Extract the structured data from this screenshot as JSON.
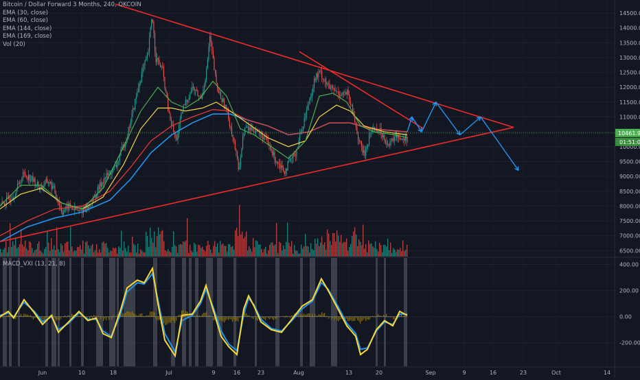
{
  "chart_data": [
    {
      "type": "line",
      "title": "Bitcoin / Dollar Forward 3 Months, 240, OKCOIN",
      "legend": [
        "EMA (30, close)",
        "EMA (60, close)",
        "EMA (144, close)",
        "EMA (169, close)",
        "Vol (20)"
      ],
      "y_ticks": [
        "14500.00",
        "14000.00",
        "13500.00",
        "13000.00",
        "12500.00",
        "12000.00",
        "11500.00",
        "11000.00",
        "10500.00",
        "10000.00",
        "9500.00",
        "9000.00",
        "8500.00",
        "8000.00",
        "7500.00",
        "7000.00",
        "6500.00"
      ],
      "x_ticks": [
        "Jun",
        "10",
        "18",
        "Jul",
        "9",
        "16",
        "23",
        "Aug",
        "13",
        "20",
        "Sep",
        "9",
        "16",
        "23",
        "Oct",
        "14"
      ],
      "ylim": [
        6300,
        14800
      ],
      "price_tag": "10461.99",
      "countdown_tag": "01:51:04",
      "price_path": [
        [
          0,
          8000
        ],
        [
          20,
          8400
        ],
        [
          34,
          9100
        ],
        [
          46,
          8900
        ],
        [
          58,
          8600
        ],
        [
          70,
          8850
        ],
        [
          78,
          8550
        ],
        [
          90,
          7800
        ],
        [
          100,
          8000
        ],
        [
          115,
          7800
        ],
        [
          130,
          8000
        ],
        [
          150,
          8900
        ],
        [
          168,
          9300
        ],
        [
          185,
          10400
        ],
        [
          205,
          12400
        ],
        [
          215,
          13100
        ],
        [
          221,
          14500
        ],
        [
          226,
          13000
        ],
        [
          236,
          12600
        ],
        [
          246,
          11000
        ],
        [
          256,
          10200
        ],
        [
          266,
          11300
        ],
        [
          280,
          12000
        ],
        [
          292,
          11600
        ],
        [
          300,
          12500
        ],
        [
          305,
          13700
        ],
        [
          315,
          12000
        ],
        [
          330,
          11200
        ],
        [
          340,
          10200
        ],
        [
          347,
          9200
        ],
        [
          355,
          10600
        ],
        [
          370,
          10600
        ],
        [
          385,
          10300
        ],
        [
          400,
          9600
        ],
        [
          414,
          9200
        ],
        [
          430,
          9800
        ],
        [
          448,
          11400
        ],
        [
          458,
          12300
        ],
        [
          466,
          12500
        ],
        [
          478,
          12000
        ],
        [
          492,
          11800
        ],
        [
          505,
          11800
        ],
        [
          515,
          11000
        ],
        [
          522,
          10200
        ],
        [
          530,
          9700
        ],
        [
          540,
          10600
        ],
        [
          550,
          10600
        ],
        [
          560,
          10300
        ],
        [
          566,
          10000
        ],
        [
          575,
          10400
        ],
        [
          585,
          10300
        ],
        [
          593,
          10300
        ]
      ],
      "ema30_path": [
        [
          0,
          8000
        ],
        [
          30,
          8700
        ],
        [
          60,
          8700
        ],
        [
          90,
          8100
        ],
        [
          120,
          7900
        ],
        [
          150,
          8600
        ],
        [
          180,
          10000
        ],
        [
          205,
          11200
        ],
        [
          230,
          12000
        ],
        [
          250,
          11500
        ],
        [
          270,
          11300
        ],
        [
          290,
          11600
        ],
        [
          310,
          12200
        ],
        [
          330,
          11700
        ],
        [
          350,
          10600
        ],
        [
          370,
          10400
        ],
        [
          395,
          10000
        ],
        [
          420,
          9600
        ],
        [
          445,
          10200
        ],
        [
          465,
          11700
        ],
        [
          485,
          11800
        ],
        [
          505,
          11500
        ],
        [
          525,
          10700
        ],
        [
          545,
          10500
        ],
        [
          575,
          10400
        ],
        [
          593,
          10300
        ]
      ],
      "ema60_path": [
        [
          0,
          7900
        ],
        [
          30,
          8400
        ],
        [
          60,
          8600
        ],
        [
          90,
          8100
        ],
        [
          120,
          7900
        ],
        [
          150,
          8300
        ],
        [
          180,
          9400
        ],
        [
          205,
          10600
        ],
        [
          230,
          11300
        ],
        [
          250,
          11300
        ],
        [
          270,
          11200
        ],
        [
          295,
          11300
        ],
        [
          315,
          11500
        ],
        [
          335,
          11200
        ],
        [
          360,
          10800
        ],
        [
          390,
          10300
        ],
        [
          420,
          10000
        ],
        [
          445,
          10200
        ],
        [
          465,
          11000
        ],
        [
          490,
          11400
        ],
        [
          510,
          11200
        ],
        [
          530,
          10700
        ],
        [
          560,
          10500
        ],
        [
          593,
          10400
        ]
      ],
      "ema144_path": [
        [
          0,
          7000
        ],
        [
          40,
          7500
        ],
        [
          80,
          7900
        ],
        [
          120,
          8000
        ],
        [
          160,
          8500
        ],
        [
          190,
          9300
        ],
        [
          220,
          10200
        ],
        [
          250,
          10700
        ],
        [
          280,
          11000
        ],
        [
          310,
          11250
        ],
        [
          335,
          11200
        ],
        [
          360,
          10900
        ],
        [
          390,
          10700
        ],
        [
          420,
          10400
        ],
        [
          450,
          10500
        ],
        [
          480,
          10800
        ],
        [
          510,
          10800
        ],
        [
          540,
          10600
        ],
        [
          593,
          10500
        ]
      ],
      "ema169_path": [
        [
          0,
          6800
        ],
        [
          40,
          7300
        ],
        [
          80,
          7600
        ],
        [
          120,
          7800
        ],
        [
          160,
          8200
        ],
        [
          190,
          8900
        ],
        [
          220,
          9800
        ],
        [
          250,
          10400
        ],
        [
          280,
          10800
        ],
        [
          310,
          11100
        ],
        [
          335,
          11100
        ],
        [
          360,
          10900
        ],
        [
          390,
          10700
        ],
        [
          420,
          10400
        ],
        [
          450,
          10500
        ],
        [
          480,
          10800
        ],
        [
          510,
          10800
        ],
        [
          540,
          10600
        ],
        [
          593,
          10500
        ]
      ],
      "upper_trendline": [
        [
          168,
          14800
        ],
        [
          748,
          10650
        ]
      ],
      "lower_trendline": [
        [
          0,
          6800
        ],
        [
          748,
          10650
        ]
      ],
      "projection": [
        [
          593,
          10500
        ],
        [
          600,
          11000
        ],
        [
          614,
          10500
        ],
        [
          635,
          11500
        ],
        [
          670,
          10400
        ],
        [
          700,
          11000
        ],
        [
          755,
          9200
        ]
      ]
    },
    {
      "type": "line",
      "title": "MACD_VXI (13, 21, 8)",
      "y_ticks": [
        "400.00",
        "200.00",
        "0.00",
        "-200.00"
      ],
      "ylim": [
        -380,
        450
      ],
      "macd_path": [
        [
          0,
          0
        ],
        [
          12,
          40
        ],
        [
          20,
          -10
        ],
        [
          35,
          130
        ],
        [
          50,
          30
        ],
        [
          62,
          -60
        ],
        [
          75,
          10
        ],
        [
          85,
          -120
        ],
        [
          100,
          -40
        ],
        [
          115,
          40
        ],
        [
          128,
          -30
        ],
        [
          140,
          -10
        ],
        [
          150,
          -130
        ],
        [
          162,
          -160
        ],
        [
          175,
          40
        ],
        [
          185,
          220
        ],
        [
          200,
          280
        ],
        [
          210,
          260
        ],
        [
          222,
          370
        ],
        [
          230,
          100
        ],
        [
          240,
          -180
        ],
        [
          255,
          -300
        ],
        [
          265,
          10
        ],
        [
          280,
          20
        ],
        [
          292,
          120
        ],
        [
          300,
          240
        ],
        [
          310,
          60
        ],
        [
          322,
          -150
        ],
        [
          333,
          -230
        ],
        [
          345,
          -290
        ],
        [
          355,
          60
        ],
        [
          362,
          160
        ],
        [
          370,
          80
        ],
        [
          380,
          -40
        ],
        [
          395,
          -100
        ],
        [
          410,
          -120
        ],
        [
          425,
          -20
        ],
        [
          440,
          80
        ],
        [
          455,
          130
        ],
        [
          468,
          290
        ],
        [
          478,
          200
        ],
        [
          492,
          60
        ],
        [
          505,
          -70
        ],
        [
          518,
          -150
        ],
        [
          525,
          -290
        ],
        [
          535,
          -250
        ],
        [
          548,
          -100
        ],
        [
          560,
          -30
        ],
        [
          572,
          -70
        ],
        [
          582,
          40
        ],
        [
          593,
          10
        ]
      ],
      "signal_path": [
        [
          0,
          10
        ],
        [
          12,
          30
        ],
        [
          20,
          0
        ],
        [
          35,
          110
        ],
        [
          50,
          40
        ],
        [
          62,
          -40
        ],
        [
          75,
          0
        ],
        [
          85,
          -100
        ],
        [
          100,
          -50
        ],
        [
          115,
          30
        ],
        [
          128,
          -20
        ],
        [
          140,
          -20
        ],
        [
          150,
          -110
        ],
        [
          162,
          -150
        ],
        [
          175,
          10
        ],
        [
          185,
          190
        ],
        [
          200,
          260
        ],
        [
          210,
          250
        ],
        [
          222,
          330
        ],
        [
          230,
          130
        ],
        [
          240,
          -130
        ],
        [
          255,
          -270
        ],
        [
          265,
          -30
        ],
        [
          280,
          10
        ],
        [
          292,
          100
        ],
        [
          300,
          210
        ],
        [
          310,
          80
        ],
        [
          322,
          -110
        ],
        [
          333,
          -210
        ],
        [
          345,
          -260
        ],
        [
          355,
          20
        ],
        [
          362,
          140
        ],
        [
          370,
          90
        ],
        [
          380,
          -20
        ],
        [
          395,
          -90
        ],
        [
          410,
          -110
        ],
        [
          425,
          -30
        ],
        [
          440,
          60
        ],
        [
          455,
          120
        ],
        [
          468,
          260
        ],
        [
          478,
          210
        ],
        [
          492,
          80
        ],
        [
          505,
          -50
        ],
        [
          518,
          -130
        ],
        [
          525,
          -250
        ],
        [
          535,
          -240
        ],
        [
          548,
          -110
        ],
        [
          560,
          -40
        ],
        [
          572,
          -60
        ],
        [
          582,
          20
        ],
        [
          593,
          20
        ]
      ]
    }
  ]
}
